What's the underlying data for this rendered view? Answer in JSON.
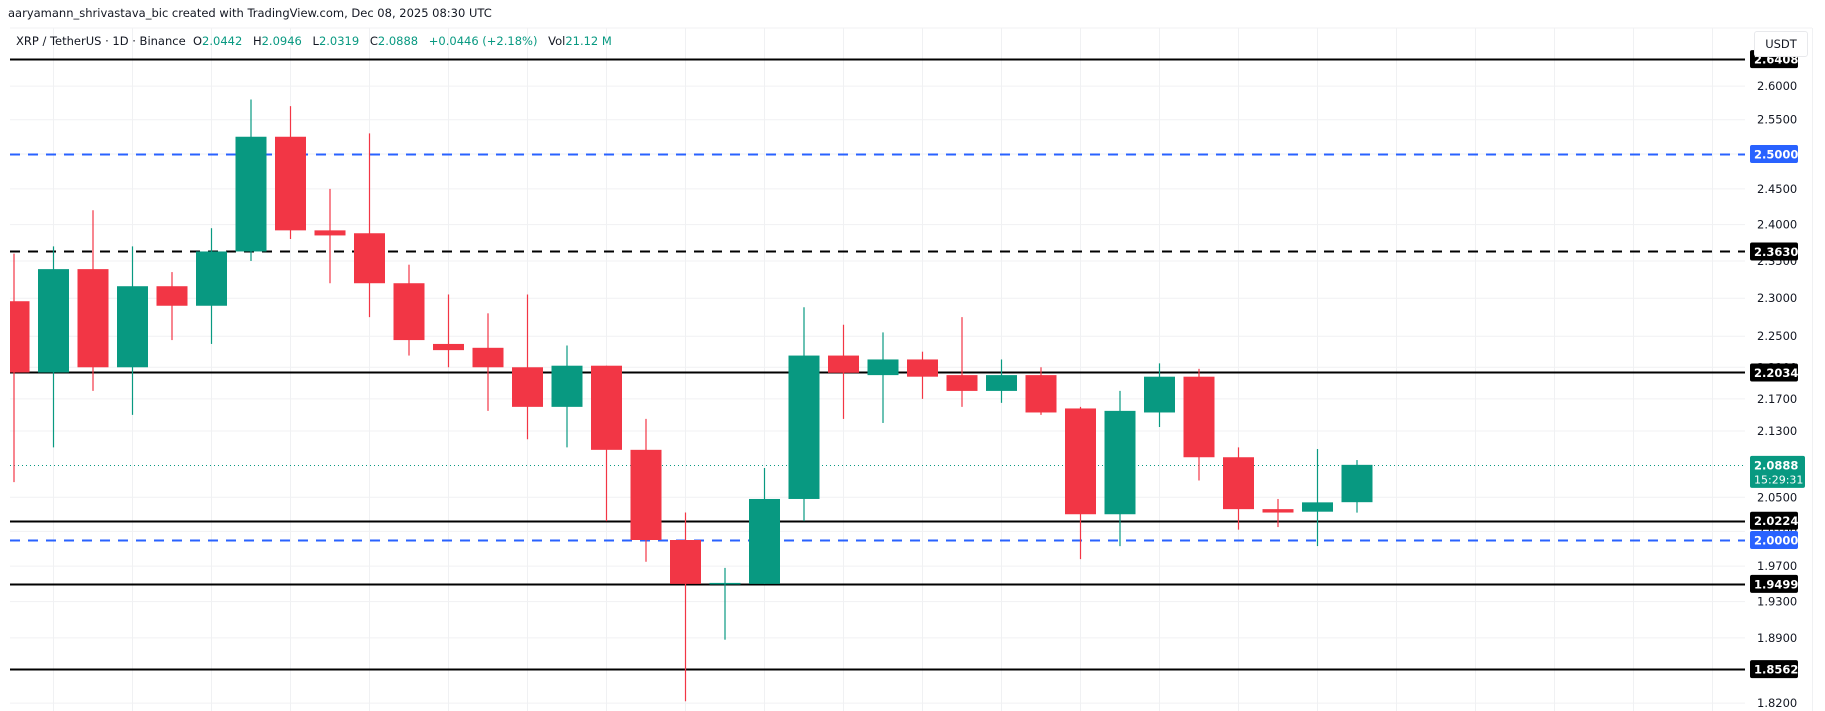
{
  "credit": "aaryamann_shrivastava_bic created with TradingView.com, Dec 08, 2025 08:30 UTC",
  "legend": {
    "symbol": "XRP / TetherUS · 1D · Binance",
    "o_label": "O",
    "o_value": "2.0442",
    "h_label": "H",
    "h_value": "2.0946",
    "l_label": "L",
    "l_value": "2.0319",
    "c_label": "C",
    "c_value": "2.0888",
    "change": "+0.0446 (+2.18%)",
    "vol_label": "Vol",
    "vol_value": "21.12 M"
  },
  "axis": {
    "unit": "USDT"
  },
  "colors": {
    "up": "#089981",
    "down": "#f23645",
    "blue_line": "#2962ff",
    "black_line": "#000000",
    "grid": "#f0f1f3"
  },
  "chart_data": {
    "type": "candlestick",
    "title": "XRP / TetherUS · 1D · Binance",
    "xlabel": "",
    "ylabel": "USDT",
    "y_scale": "log",
    "ylim": [
      1.81,
      2.66
    ],
    "grid": true,
    "y_ticks": [
      "2.6000",
      "2.5500",
      "2.5000",
      "2.4500",
      "2.4000",
      "2.3500",
      "2.3000",
      "2.2500",
      "2.2100",
      "2.1700",
      "2.1300",
      "2.0500",
      "2.0100",
      "1.9700",
      "1.9300",
      "1.8900",
      "1.8200"
    ],
    "candles": [
      {
        "o": 2.296,
        "h": 2.36,
        "l": 2.068,
        "c": 2.2034
      },
      {
        "o": 2.2034,
        "h": 2.37,
        "l": 2.11,
        "c": 2.339
      },
      {
        "o": 2.339,
        "h": 2.42,
        "l": 2.18,
        "c": 2.21
      },
      {
        "o": 2.21,
        "h": 2.37,
        "l": 2.15,
        "c": 2.316
      },
      {
        "o": 2.316,
        "h": 2.335,
        "l": 2.245,
        "c": 2.29
      },
      {
        "o": 2.29,
        "h": 2.395,
        "l": 2.24,
        "c": 2.363
      },
      {
        "o": 2.363,
        "h": 2.58,
        "l": 2.35,
        "c": 2.525
      },
      {
        "o": 2.525,
        "h": 2.57,
        "l": 2.38,
        "c": 2.392
      },
      {
        "o": 2.392,
        "h": 2.45,
        "l": 2.32,
        "c": 2.385
      },
      {
        "o": 2.388,
        "h": 2.53,
        "l": 2.275,
        "c": 2.32
      },
      {
        "o": 2.32,
        "h": 2.345,
        "l": 2.225,
        "c": 2.245
      },
      {
        "o": 2.24,
        "h": 2.305,
        "l": 2.21,
        "c": 2.232
      },
      {
        "o": 2.235,
        "h": 2.28,
        "l": 2.155,
        "c": 2.21
      },
      {
        "o": 2.21,
        "h": 2.305,
        "l": 2.12,
        "c": 2.16
      },
      {
        "o": 2.16,
        "h": 2.238,
        "l": 2.11,
        "c": 2.212
      },
      {
        "o": 2.212,
        "h": 2.212,
        "l": 2.022,
        "c": 2.107
      },
      {
        "o": 2.107,
        "h": 2.145,
        "l": 1.975,
        "c": 2.0
      },
      {
        "o": 2.0,
        "h": 2.032,
        "l": 1.822,
        "c": 1.9499
      },
      {
        "o": 1.95,
        "h": 1.968,
        "l": 1.888,
        "c": 1.951
      },
      {
        "o": 1.9499,
        "h": 2.085,
        "l": 1.9499,
        "c": 2.048
      },
      {
        "o": 2.048,
        "h": 2.288,
        "l": 2.022,
        "c": 2.225
      },
      {
        "o": 2.225,
        "h": 2.265,
        "l": 2.145,
        "c": 2.203
      },
      {
        "o": 2.2,
        "h": 2.255,
        "l": 2.14,
        "c": 2.22
      },
      {
        "o": 2.22,
        "h": 2.23,
        "l": 2.17,
        "c": 2.198
      },
      {
        "o": 2.2,
        "h": 2.275,
        "l": 2.16,
        "c": 2.18
      },
      {
        "o": 2.18,
        "h": 2.22,
        "l": 2.165,
        "c": 2.2
      },
      {
        "o": 2.2,
        "h": 2.21,
        "l": 2.15,
        "c": 2.153
      },
      {
        "o": 2.158,
        "h": 2.16,
        "l": 1.978,
        "c": 2.03
      },
      {
        "o": 2.03,
        "h": 2.18,
        "l": 1.993,
        "c": 2.155
      },
      {
        "o": 2.153,
        "h": 2.215,
        "l": 2.135,
        "c": 2.198
      },
      {
        "o": 2.198,
        "h": 2.208,
        "l": 2.07,
        "c": 2.098
      },
      {
        "o": 2.098,
        "h": 2.11,
        "l": 2.012,
        "c": 2.036
      },
      {
        "o": 2.036,
        "h": 2.048,
        "l": 2.015,
        "c": 2.032
      },
      {
        "o": 2.033,
        "h": 2.108,
        "l": 1.993,
        "c": 2.044
      },
      {
        "o": 2.0442,
        "h": 2.0946,
        "l": 2.0319,
        "c": 2.0888
      }
    ],
    "horizontal_lines": [
      {
        "price": 2.6408,
        "label": "2.6408",
        "style": "solid",
        "color": "#000000"
      },
      {
        "price": 2.5,
        "label": "2.5000",
        "style": "dashed",
        "color": "#2962ff"
      },
      {
        "price": 2.363,
        "label": "2.3630",
        "style": "dashed",
        "color": "#000000"
      },
      {
        "price": 2.2034,
        "label": "2.2034",
        "style": "solid",
        "color": "#000000"
      },
      {
        "price": 2.0224,
        "label": "2.0224",
        "style": "solid",
        "color": "#000000"
      },
      {
        "price": 2.0,
        "label": "2.0000",
        "style": "dashed",
        "color": "#2962ff"
      },
      {
        "price": 1.9499,
        "label": "1.9499",
        "style": "solid",
        "color": "#000000"
      },
      {
        "price": 1.8562,
        "label": "1.8562",
        "style": "solid",
        "color": "#000000"
      }
    ],
    "current_price": {
      "price": 2.0888,
      "label": "2.0888",
      "countdown": "15:29:31"
    }
  }
}
